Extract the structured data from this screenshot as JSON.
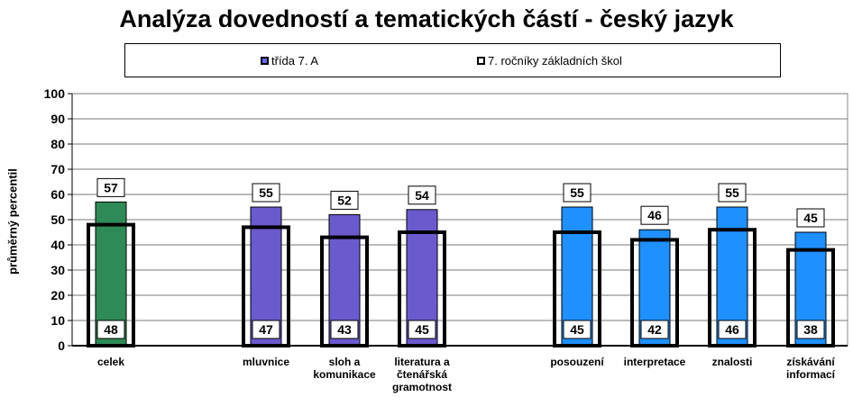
{
  "chart_data": {
    "type": "bar",
    "title": "Analýza dovedností a tematických částí - český jazyk",
    "ylabel": "průměrný percentil",
    "xlabel": "",
    "ylim": [
      0,
      100
    ],
    "yticks": [
      0,
      10,
      20,
      30,
      40,
      50,
      60,
      70,
      80,
      90,
      100
    ],
    "grid": true,
    "legend_position": "top",
    "categories": [
      "celek",
      "mluvnice",
      "sloh a komunikace",
      "literatura a čtenářská gramotnost",
      "posouzení",
      "interpretace",
      "znalosti",
      "získávání informací"
    ],
    "category_labels": [
      [
        "celek"
      ],
      [
        "mluvnice"
      ],
      [
        "sloh a",
        "komunikace"
      ],
      [
        "literatura a",
        "čtenářská",
        "gramotnost"
      ],
      [
        "posouzení"
      ],
      [
        "interpretace"
      ],
      [
        "znalosti"
      ],
      [
        "získávání",
        "informací"
      ]
    ],
    "series": [
      {
        "name": "třída  7. A",
        "values": [
          57,
          55,
          52,
          54,
          55,
          46,
          55,
          45
        ]
      },
      {
        "name": "7. ročníky základních škol",
        "values": [
          48,
          47,
          43,
          45,
          45,
          42,
          46,
          38
        ]
      }
    ],
    "bar_colors": [
      "#2e8b57",
      "#6a5acd",
      "#6a5acd",
      "#6a5acd",
      "#1e90ff",
      "#1e90ff",
      "#1e90ff",
      "#1e90ff"
    ]
  }
}
